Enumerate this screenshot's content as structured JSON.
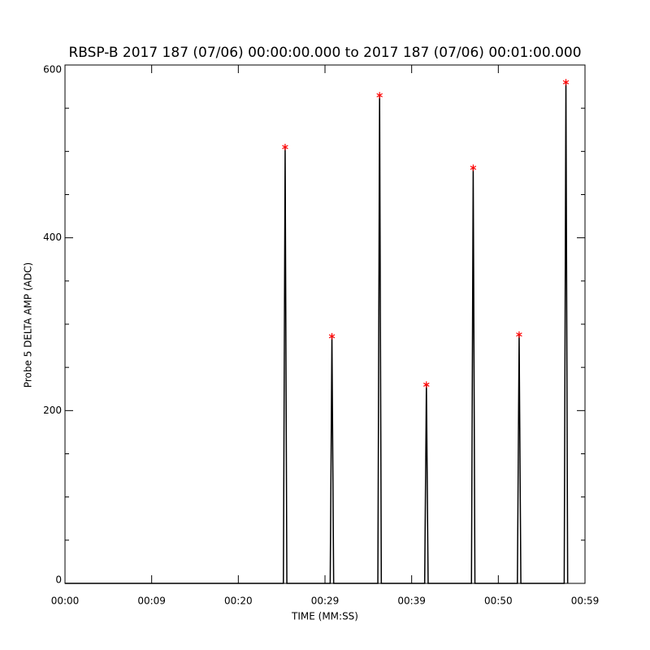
{
  "chart_data": {
    "type": "line",
    "title": "RBSP-B 2017 187 (07/06) 00:00:00.000 to 2017 187 (07/06) 00:01:00.000",
    "x_label": "TIME (MM:SS)",
    "y_label": "Probe 5 DELTA AMP (ADC)",
    "xlim": [
      0,
      60
    ],
    "xticks": [
      {
        "value": 0,
        "label": "00:00"
      },
      {
        "value": 10,
        "label": "00:09"
      },
      {
        "value": 20,
        "label": "00:20"
      },
      {
        "value": 30,
        "label": "00:29"
      },
      {
        "value": 40,
        "label": "00:39"
      },
      {
        "value": 50,
        "label": "00:50"
      },
      {
        "value": 60,
        "label": "00:59"
      }
    ],
    "ylim": [
      0,
      600
    ],
    "yticks": [
      0,
      200,
      400,
      600
    ],
    "y_minor_ticks": [
      50,
      100,
      150,
      250,
      300,
      350,
      450,
      500,
      550
    ],
    "series": [
      {
        "color": "#000000",
        "marker": "none",
        "x": [
          0,
          25.2,
          25.4,
          25.6,
          30.6,
          30.8,
          31.0,
          36.1,
          36.3,
          36.5,
          41.5,
          41.7,
          41.9,
          46.9,
          47.1,
          47.3,
          52.2,
          52.4,
          52.6,
          57.6,
          57.8,
          58.0
        ],
        "values": [
          0,
          0,
          505,
          0,
          0,
          286,
          0,
          0,
          565,
          0,
          0,
          230,
          0,
          0,
          481,
          0,
          0,
          288,
          0,
          0,
          580,
          0
        ]
      },
      {
        "color": "#ff0000",
        "marker": "asterisk",
        "x": [
          25.4,
          30.8,
          36.3,
          41.7,
          47.1,
          52.4,
          57.8
        ],
        "values": [
          505,
          286,
          565,
          230,
          481,
          288,
          580
        ]
      }
    ]
  }
}
